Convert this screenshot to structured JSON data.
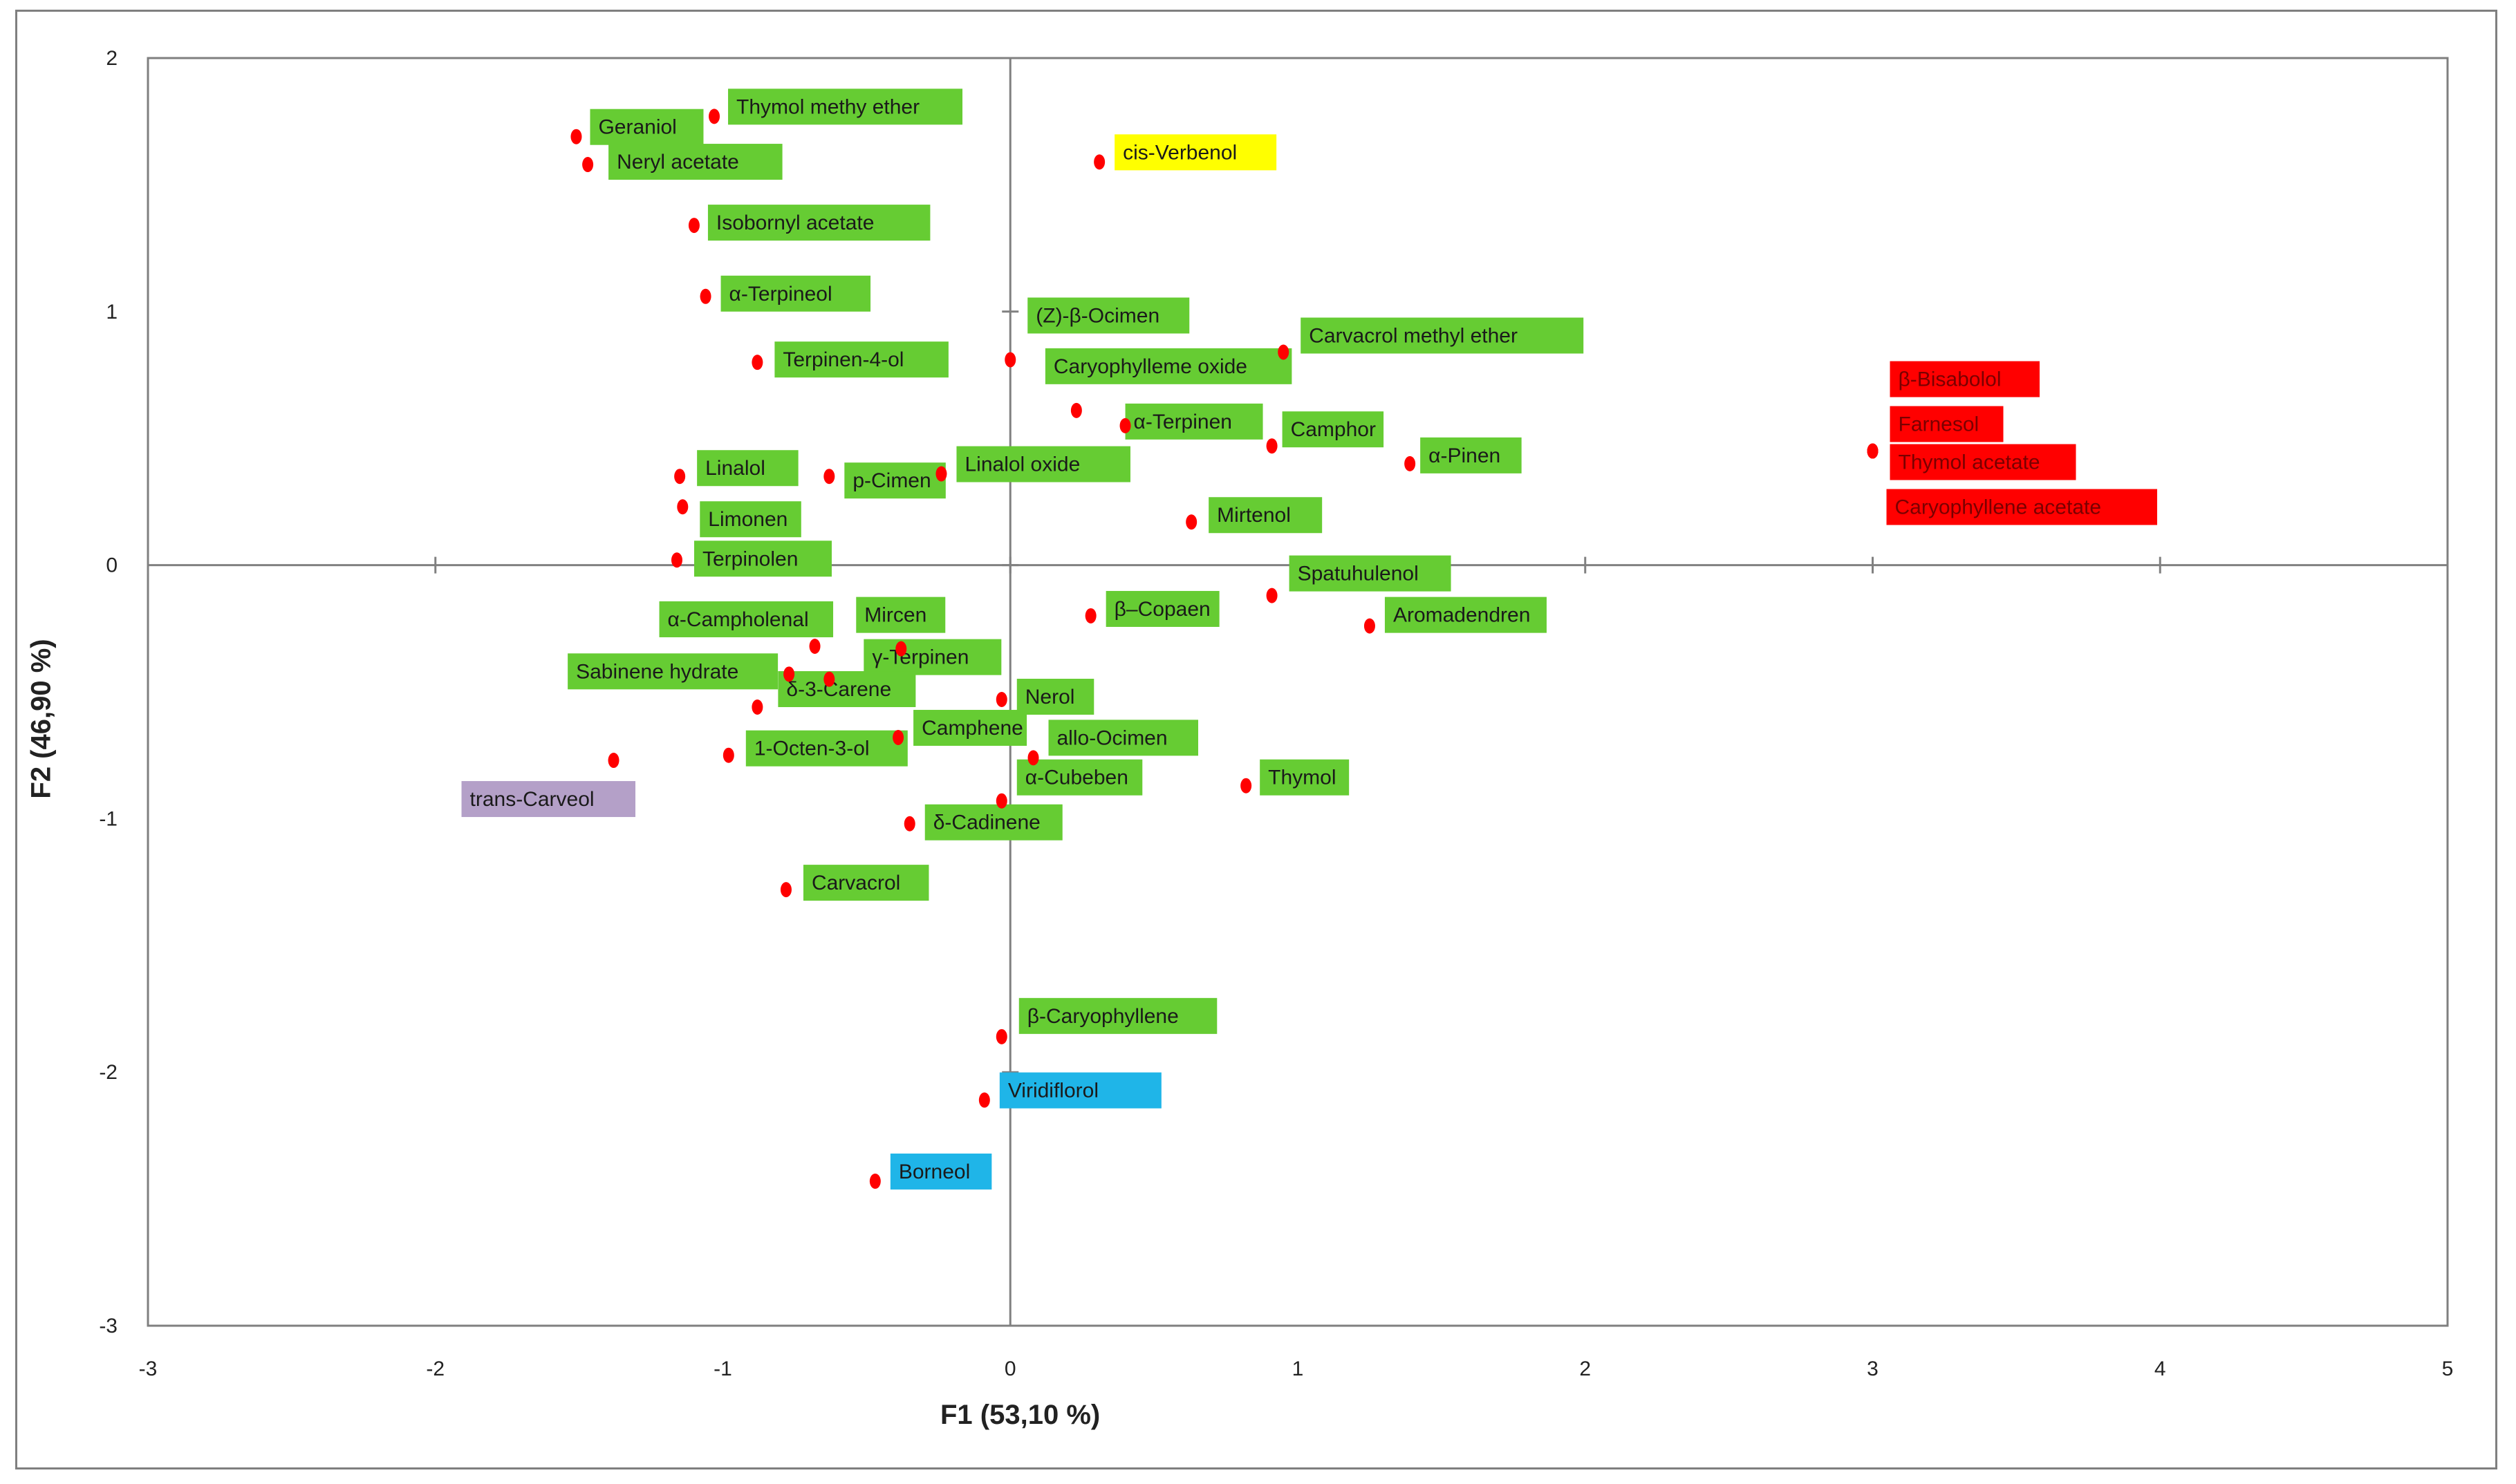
{
  "chart_data": {
    "type": "scatter",
    "title": "",
    "xlabel": "F1 (53,10 %)",
    "ylabel": "F2 (46,90 %)",
    "xlim": [
      -3,
      5
    ],
    "ylim": [
      -3,
      2
    ],
    "xticks": [
      "-3",
      "-2",
      "-1",
      "0",
      "1",
      "2",
      "3",
      "4",
      "5"
    ],
    "yticks": [
      "-3",
      "-2",
      "-1",
      "0",
      "1",
      "2"
    ],
    "point_color": "#ff0000",
    "colors": {
      "green": "#66cc33",
      "yellow": "#ffff00",
      "red": "#ff0000",
      "blue": "#1fb5e8",
      "purple": "#b4a0c8"
    },
    "points": [
      {
        "label": "Geraniol",
        "x": -1.51,
        "y": 1.69,
        "color": "green"
      },
      {
        "label": "Thymol methy ether",
        "x": -1.03,
        "y": 1.77,
        "color": "green"
      },
      {
        "label": "Neryl acetate",
        "x": -1.47,
        "y": 1.58,
        "color": "green"
      },
      {
        "label": "Isobornyl acetate",
        "x": -1.1,
        "y": 1.34,
        "color": "green"
      },
      {
        "label": "α-Terpineol",
        "x": -1.06,
        "y": 1.06,
        "color": "green"
      },
      {
        "label": "Terpinen-4-ol",
        "x": -0.88,
        "y": 0.8,
        "color": "green"
      },
      {
        "label": "Linalol",
        "x": -1.15,
        "y": 0.35,
        "color": "green"
      },
      {
        "label": "Limonen",
        "x": -1.14,
        "y": 0.23,
        "color": "green"
      },
      {
        "label": "p-Cimen",
        "x": -0.63,
        "y": 0.35,
        "color": "green"
      },
      {
        "label": "Linalol oxide",
        "x": -0.24,
        "y": 0.36,
        "color": "green"
      },
      {
        "label": "Terpinolen",
        "x": -1.16,
        "y": 0.02,
        "color": "green"
      },
      {
        "label": "cis-Verbenol",
        "x": 0.31,
        "y": 1.59,
        "color": "yellow"
      },
      {
        "label": "(Z)-β-Ocimen",
        "x": 0.0,
        "y": 0.81,
        "color": "green"
      },
      {
        "label": "Carvacrol methyl ether",
        "x": 0.95,
        "y": 0.84,
        "color": "green"
      },
      {
        "label": "Caryophylleme oxide",
        "x": 0.23,
        "y": 0.61,
        "color": "green"
      },
      {
        "label": "α-Terpinen",
        "x": 0.4,
        "y": 0.55,
        "color": "green"
      },
      {
        "label": "Camphor",
        "x": 0.91,
        "y": 0.47,
        "color": "green"
      },
      {
        "label": "α-Pinen",
        "x": 1.39,
        "y": 0.4,
        "color": "green"
      },
      {
        "label": "Mirtenol",
        "x": 0.63,
        "y": 0.17,
        "color": "green"
      },
      {
        "label": "β-Bisabolol",
        "x": 3.0,
        "y": 0.45,
        "color": "red"
      },
      {
        "label": "Farnesol",
        "x": 3.0,
        "y": 0.45,
        "color": "red"
      },
      {
        "label": "Thymol acetate",
        "x": 3.0,
        "y": 0.45,
        "color": "red"
      },
      {
        "label": "Caryophyllene acetate",
        "x": 3.0,
        "y": 0.45,
        "color": "red"
      },
      {
        "label": "α-Campholenal",
        "x": -0.68,
        "y": -0.32,
        "color": "green"
      },
      {
        "label": "Mircen",
        "x": -0.38,
        "y": -0.33,
        "color": "green"
      },
      {
        "label": "Sabinene hydrate",
        "x": -0.77,
        "y": -0.43,
        "color": "green"
      },
      {
        "label": "γ-Terpinen",
        "x": -0.63,
        "y": -0.45,
        "color": "green"
      },
      {
        "label": "δ-3-Carene",
        "x": -0.88,
        "y": -0.56,
        "color": "green"
      },
      {
        "label": "Camphene",
        "x": -0.39,
        "y": -0.68,
        "color": "green"
      },
      {
        "label": "Nerol",
        "x": -0.03,
        "y": -0.53,
        "color": "green"
      },
      {
        "label": "allo-Ocimen",
        "x": 0.08,
        "y": -0.76,
        "color": "green"
      },
      {
        "label": "β–Copaen",
        "x": 0.28,
        "y": -0.2,
        "color": "green"
      },
      {
        "label": "Spatuhulenol",
        "x": 0.91,
        "y": -0.12,
        "color": "green"
      },
      {
        "label": "Aromadendren",
        "x": 1.25,
        "y": -0.24,
        "color": "green"
      },
      {
        "label": "trans-Carveol",
        "x": -1.38,
        "y": -0.77,
        "color": "purple"
      },
      {
        "label": "1-Octen-3-ol",
        "x": -0.98,
        "y": -0.75,
        "color": "green"
      },
      {
        "label": "α-Cubeben",
        "x": -0.03,
        "y": -0.93,
        "color": "green"
      },
      {
        "label": "Thymol",
        "x": 0.82,
        "y": -0.87,
        "color": "green"
      },
      {
        "label": "δ-Cadinene",
        "x": -0.35,
        "y": -1.02,
        "color": "green"
      },
      {
        "label": "Carvacrol",
        "x": -0.78,
        "y": -1.28,
        "color": "green"
      },
      {
        "label": "β-Caryophyllene",
        "x": -0.03,
        "y": -1.86,
        "color": "green"
      },
      {
        "label": "Viridiflorol",
        "x": -0.09,
        "y": -2.11,
        "color": "blue"
      },
      {
        "label": "Borneol",
        "x": -0.47,
        "y": -2.43,
        "color": "blue"
      }
    ]
  }
}
